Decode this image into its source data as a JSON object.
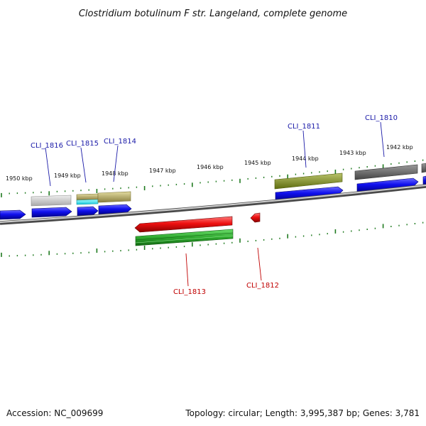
{
  "title": "Clostridium botulinum F str. Langeland, complete genome",
  "footer": {
    "accession": "Accession: NC_009699",
    "summary": "Topology: circular; Length: 3,995,387 bp; Genes: 3,781"
  },
  "tick_labels": [
    "1950 kbp",
    "1949 kbp",
    "1948 kbp",
    "1947 kbp",
    "1946 kbp",
    "1945 kbp",
    "1944 kbp",
    "1943 kbp",
    "1942 kbp"
  ],
  "gene_labels": {
    "forward": [
      "CLI_1816",
      "CLI_1815",
      "CLI_1814",
      "CLI_1811",
      "CLI_1810"
    ],
    "reverse": [
      "CLI_1813",
      "CLI_1812"
    ]
  },
  "colors": {
    "forward_label": "#1a1aa8",
    "reverse_label": "#c00000",
    "backbone": "#8a8a8a",
    "tick": "#1f7a1f",
    "cds": "#1010ee",
    "cds_reverse": "#ee1010",
    "feature_reverse": "#2ea82e"
  }
}
